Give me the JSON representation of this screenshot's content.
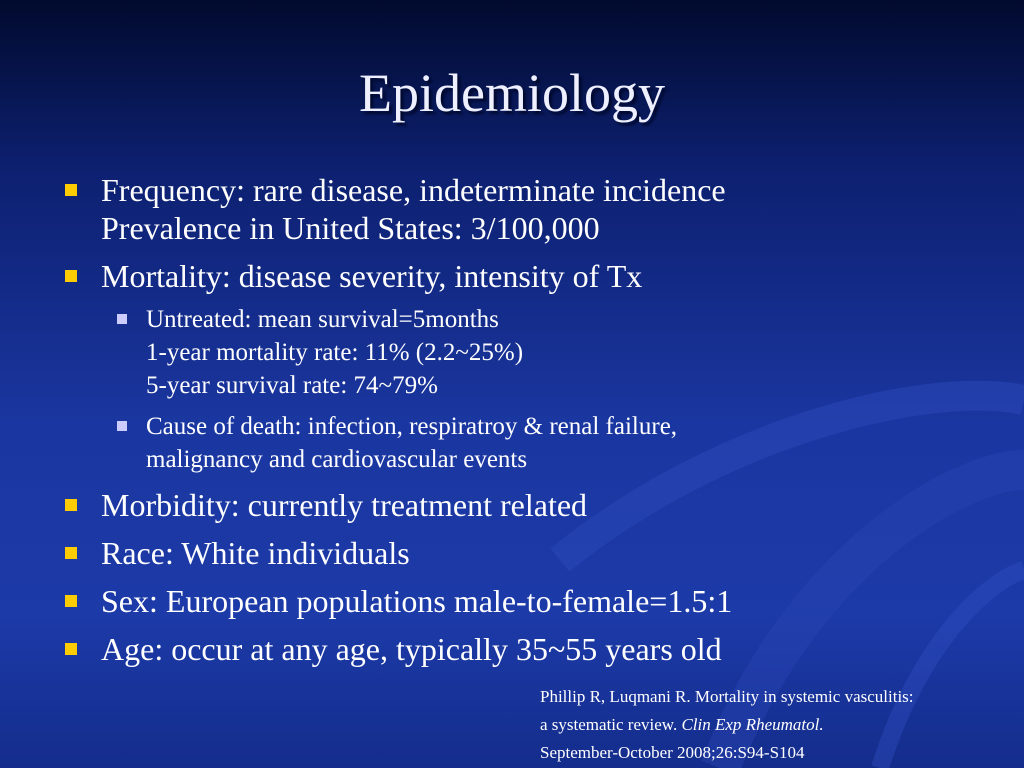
{
  "title": "Epidemiology",
  "bullets": [
    {
      "lines": [
        "Frequency: rare disease, indeterminate incidence",
        "Prevalence in United States: 3/100,000"
      ]
    },
    {
      "lines": [
        "Mortality: disease severity, intensity of Tx"
      ],
      "sub": [
        {
          "lines": [
            "Untreated: mean survival=5months",
            "1-year mortality rate: 11% (2.2~25%)",
            "5-year survival rate: 74~79%"
          ]
        },
        {
          "lines": [
            "Cause of death: infection, respiratroy & renal failure,",
            "malignancy and cardiovascular events"
          ]
        }
      ]
    },
    {
      "lines": [
        "Morbidity: currently treatment related"
      ]
    },
    {
      "lines": [
        "Race: White individuals"
      ]
    },
    {
      "lines": [
        "Sex: European populations male-to-female=1.5:1"
      ]
    },
    {
      "lines": [
        "Age: occur at any age, typically 35~55 years old"
      ]
    }
  ],
  "citation": {
    "line1": "Phillip R, Luqmani R. Mortality in systemic vasculitis:",
    "line2": "a systematic review.",
    "journal": "Clin Exp Rheumatol.",
    "line3": "September-October 2008;26:S94-S104"
  }
}
